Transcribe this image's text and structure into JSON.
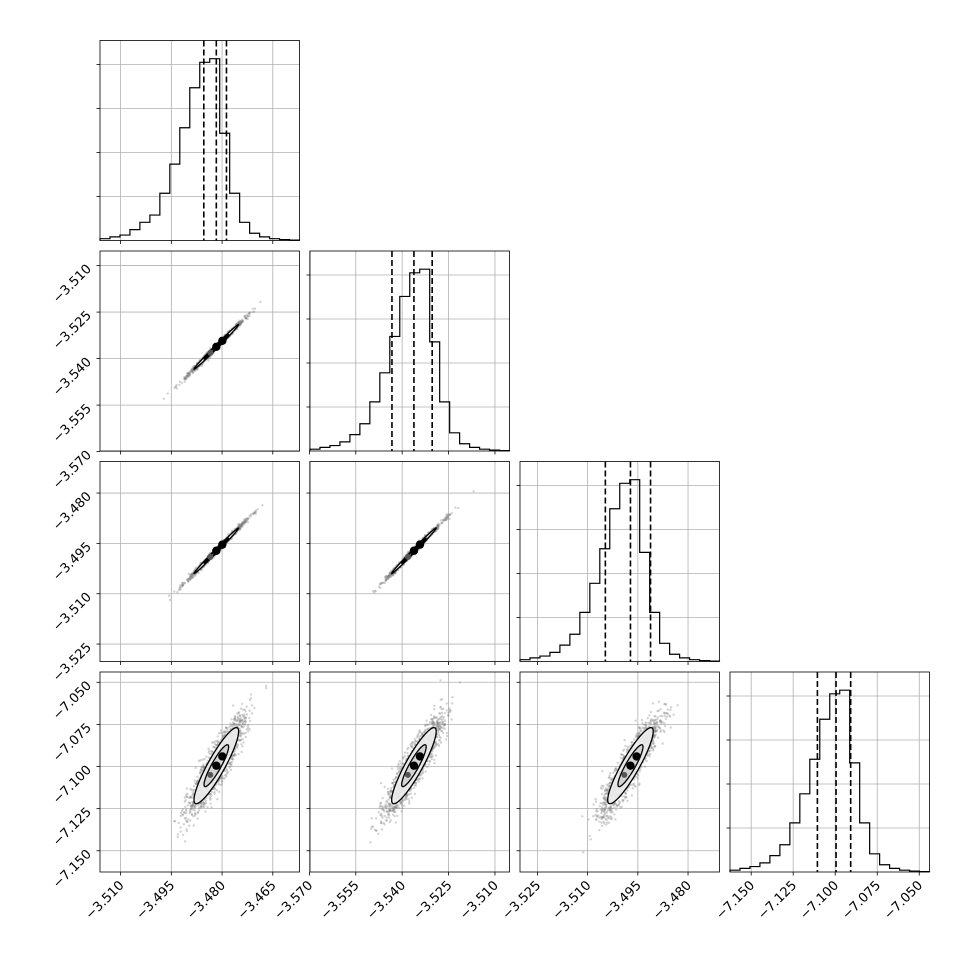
{
  "chart_data": {
    "type": "corner",
    "grid": true,
    "colors": {
      "hist": "#000000",
      "scatter": "#808080",
      "contour_line": "#000000",
      "contour_fill_outer": "#f0f0f0",
      "contour_fill_inner": "#d0d0d0",
      "frame": "#000000",
      "grid": "#b0b0b0"
    },
    "parameters": [
      {
        "ticks": [
          -3.51,
          -3.495,
          -3.48,
          -3.465
        ],
        "tick_labels": [
          "−3.510",
          "−3.495",
          "−3.480",
          "−3.465"
        ],
        "range": [
          -3.5161,
          -3.4571
        ],
        "quantiles": [
          -3.4854,
          -3.4817,
          -3.4787
        ],
        "hist_edges_start": -3.5161,
        "hist_bin_width": 0.00295,
        "hist_counts": [
          0.01,
          0.02,
          0.03,
          0.06,
          0.1,
          0.14,
          0.26,
          0.42,
          0.62,
          0.84,
          0.98,
          1.0,
          0.59,
          0.26,
          0.1,
          0.04,
          0.02,
          0.01,
          0.005,
          0.002
        ]
      },
      {
        "ticks": [
          -3.57,
          -3.555,
          -3.54,
          -3.525,
          -3.51
        ],
        "tick_labels": [
          "−3.570",
          "−3.555",
          "−3.540",
          "−3.525",
          "−3.510"
        ],
        "range": [
          -3.5698,
          -3.5053
        ],
        "quantiles": [
          -3.5433,
          -3.5362,
          -3.5303
        ],
        "hist_edges_start": -3.5698,
        "hist_bin_width": 0.003225,
        "hist_counts": [
          0.01,
          0.02,
          0.03,
          0.05,
          0.09,
          0.15,
          0.27,
          0.43,
          0.63,
          0.85,
          0.98,
          1.0,
          0.6,
          0.27,
          0.1,
          0.04,
          0.02,
          0.01,
          0.005,
          0.002
        ]
      },
      {
        "ticks": [
          -3.525,
          -3.51,
          -3.495,
          -3.48
        ],
        "tick_labels": [
          "−3.525",
          "−3.510",
          "−3.495",
          "−3.480"
        ],
        "range": [
          -3.5302,
          -3.4706
        ],
        "quantiles": [
          -3.5047,
          -3.4972,
          -3.4912
        ],
        "hist_edges_start": -3.5302,
        "hist_bin_width": 0.00298,
        "hist_counts": [
          0.01,
          0.02,
          0.03,
          0.05,
          0.09,
          0.15,
          0.27,
          0.43,
          0.62,
          0.84,
          0.98,
          1.0,
          0.6,
          0.27,
          0.1,
          0.04,
          0.02,
          0.01,
          0.005,
          0.002
        ]
      },
      {
        "ticks": [
          -7.15,
          -7.125,
          -7.1,
          -7.075,
          -7.05
        ],
        "tick_labels": [
          "−7.150",
          "−7.125",
          "−7.100",
          "−7.075",
          "−7.050"
        ],
        "range": [
          -7.1626,
          -7.0439
        ],
        "quantiles": [
          -7.1106,
          -7.0995,
          -7.0908
        ],
        "hist_edges_start": -7.1626,
        "hist_bin_width": 0.005935,
        "hist_counts": [
          0.01,
          0.02,
          0.03,
          0.05,
          0.09,
          0.15,
          0.27,
          0.43,
          0.62,
          0.84,
          0.98,
          1.0,
          0.6,
          0.27,
          0.1,
          0.04,
          0.02,
          0.01,
          0.005,
          0.002
        ]
      }
    ],
    "pairs": [
      {
        "row": 1,
        "col": 0,
        "mean": [
          -3.4817,
          -3.5362
        ],
        "sd": [
          0.0033,
          0.0036
        ],
        "corr": 0.995,
        "n_points": 1100
      },
      {
        "row": 2,
        "col": 0,
        "mean": [
          -3.4817,
          -3.4972
        ],
        "sd": [
          0.0033,
          0.0034
        ],
        "corr": 0.995,
        "n_points": 1100
      },
      {
        "row": 2,
        "col": 1,
        "mean": [
          -3.5362,
          -3.4972
        ],
        "sd": [
          0.0036,
          0.0034
        ],
        "corr": 0.995,
        "n_points": 1100
      },
      {
        "row": 3,
        "col": 0,
        "mean": [
          -3.4817,
          -7.0995
        ],
        "sd": [
          0.0033,
          0.0113
        ],
        "corr": 0.9,
        "n_points": 1600
      },
      {
        "row": 3,
        "col": 1,
        "mean": [
          -3.5362,
          -7.0995
        ],
        "sd": [
          0.0036,
          0.0113
        ],
        "corr": 0.9,
        "n_points": 1600
      },
      {
        "row": 3,
        "col": 2,
        "mean": [
          -3.4972,
          -7.0995
        ],
        "sd": [
          0.0034,
          0.0113
        ],
        "corr": 0.9,
        "n_points": 1600
      }
    ]
  }
}
